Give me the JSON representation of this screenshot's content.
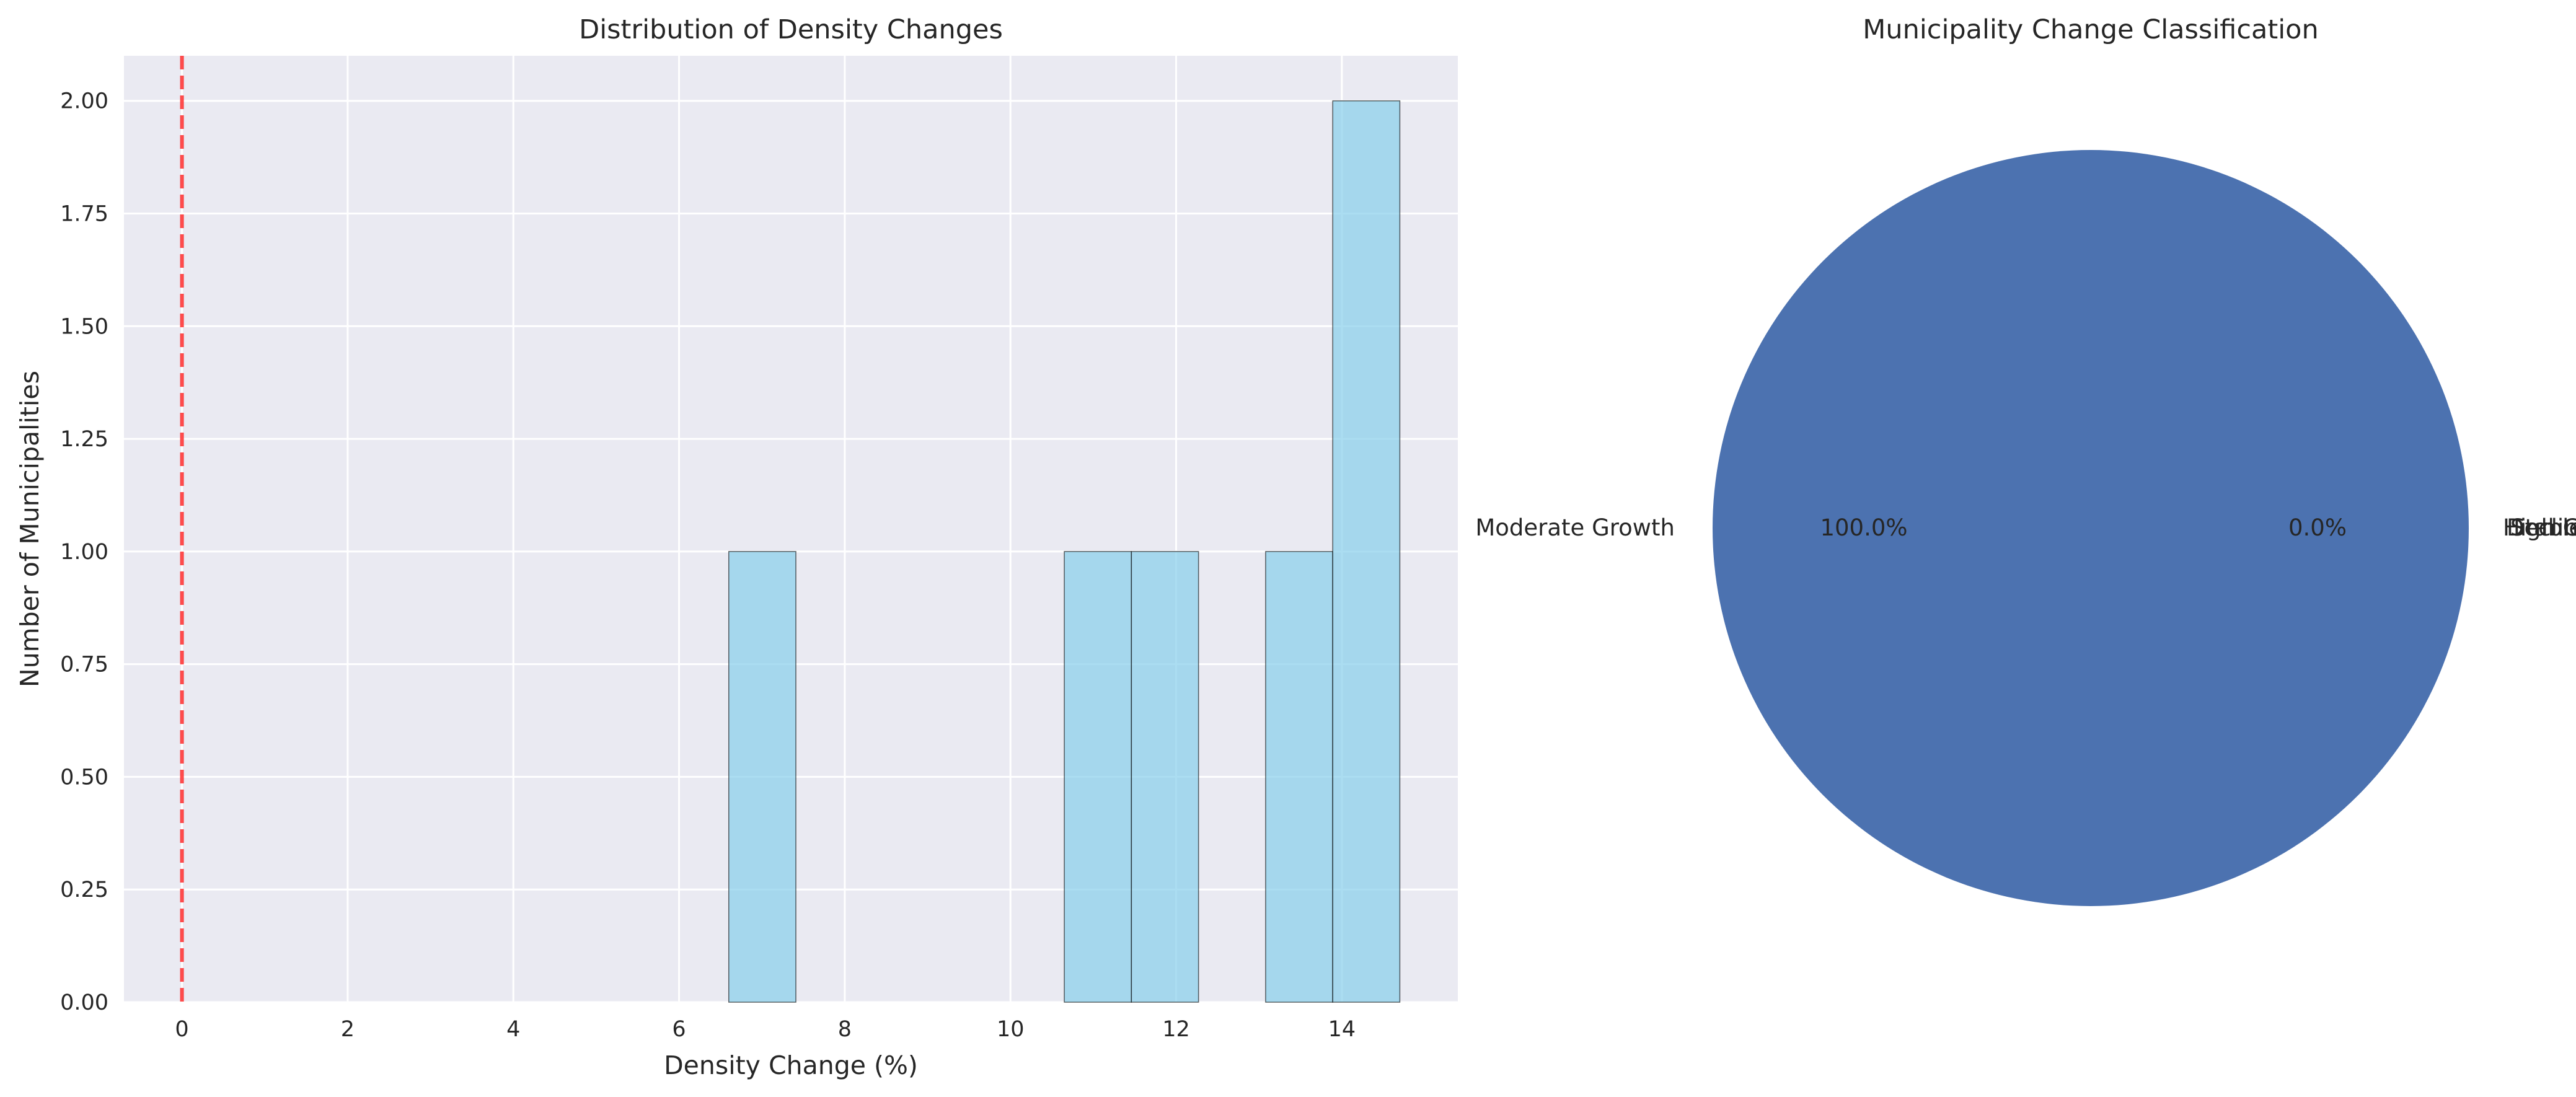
{
  "colors": {
    "plot_background": "#EAEAF2",
    "grid": "#FFFFFF",
    "bar_fill": "#87CEEB",
    "bar_edge": "#000000",
    "reference_line": "#FF0000",
    "pie_moderate_growth": "#4C72B0",
    "text": "#262626"
  },
  "chart_data": [
    {
      "type": "bar",
      "subtype": "histogram",
      "title": "Distribution of Density Changes",
      "xlabel": "Density Change (%)",
      "ylabel": "Number of Municipalities",
      "xlim": [
        -0.7,
        15.4
      ],
      "ylim": [
        0,
        2.1
      ],
      "x_ticks": [
        0,
        2,
        4,
        6,
        8,
        10,
        12,
        14
      ],
      "y_ticks": [
        0.0,
        0.25,
        0.5,
        0.75,
        1.0,
        1.25,
        1.5,
        1.75,
        2.0
      ],
      "x_tick_labels": [
        "0",
        "2",
        "4",
        "6",
        "8",
        "10",
        "12",
        "14"
      ],
      "y_tick_labels": [
        "0.00",
        "0.25",
        "0.50",
        "0.75",
        "1.00",
        "1.25",
        "1.50",
        "1.75",
        "2.00"
      ],
      "bins": [
        {
          "x0": 6.6,
          "x1": 7.41,
          "count": 1
        },
        {
          "x0": 10.65,
          "x1": 11.46,
          "count": 1
        },
        {
          "x0": 11.46,
          "x1": 12.27,
          "count": 1
        },
        {
          "x0": 13.08,
          "x1": 13.89,
          "count": 1
        },
        {
          "x0": 13.89,
          "x1": 14.7,
          "count": 2
        }
      ],
      "reference_line": {
        "x": 0,
        "style": "dashed"
      },
      "grid": true,
      "legend": "none"
    },
    {
      "type": "pie",
      "title": "Municipality Change Classification",
      "slices": [
        {
          "label": "High Growth",
          "value": 0.0,
          "pct_label": "0.0%"
        },
        {
          "label": "Decline",
          "value": 0.0,
          "pct_label": ""
        },
        {
          "label": "Stable",
          "value": 0.0,
          "pct_label": ""
        },
        {
          "label": "Moderate Growth",
          "value": 100.0,
          "pct_label": "100.0%"
        }
      ],
      "legend": "none"
    }
  ]
}
